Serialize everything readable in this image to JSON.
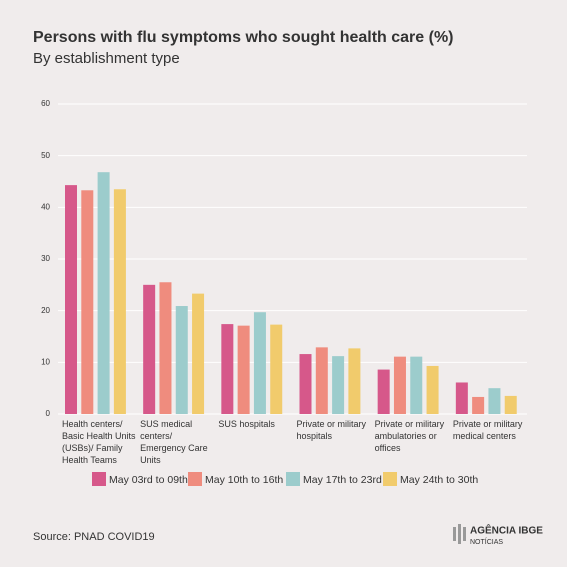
{
  "chart_data": {
    "type": "bar",
    "title": "Persons with flu symptoms who sought health care (%)",
    "subtitle": "By establishment type",
    "categories": [
      "Health centers/ Basic Health Units (USBs)/ Family Health Teams",
      "SUS medical centers/ Emergency Care Units",
      "SUS hospitals",
      "Private or military hospitals",
      "Private or military ambulatories or offices",
      "Private or military medical centers"
    ],
    "series": [
      {
        "name": "May 03rd to 09th",
        "color": "#d6588a",
        "values": [
          44.3,
          25.0,
          17.4,
          11.6,
          8.6,
          6.1
        ]
      },
      {
        "name": "May 10th to 16th",
        "color": "#ef8c7e",
        "values": [
          43.3,
          25.5,
          17.1,
          12.9,
          11.1,
          3.3
        ]
      },
      {
        "name": "May 17th to 23rd",
        "color": "#9ccccc",
        "values": [
          46.8,
          20.9,
          19.7,
          11.2,
          11.1,
          5.0
        ]
      },
      {
        "name": "May 24th to 30th",
        "color": "#f1cb6c",
        "values": [
          43.5,
          23.3,
          17.3,
          12.7,
          9.3,
          3.5
        ]
      }
    ],
    "ylim": [
      0,
      60
    ],
    "yticks": [
      0,
      10,
      20,
      30,
      40,
      50,
      60
    ],
    "grid": true,
    "source": "Source: PNAD COVID19",
    "logo": "AGÊNCIA IBGE",
    "logo_sub": "NOTÍCIAS"
  }
}
